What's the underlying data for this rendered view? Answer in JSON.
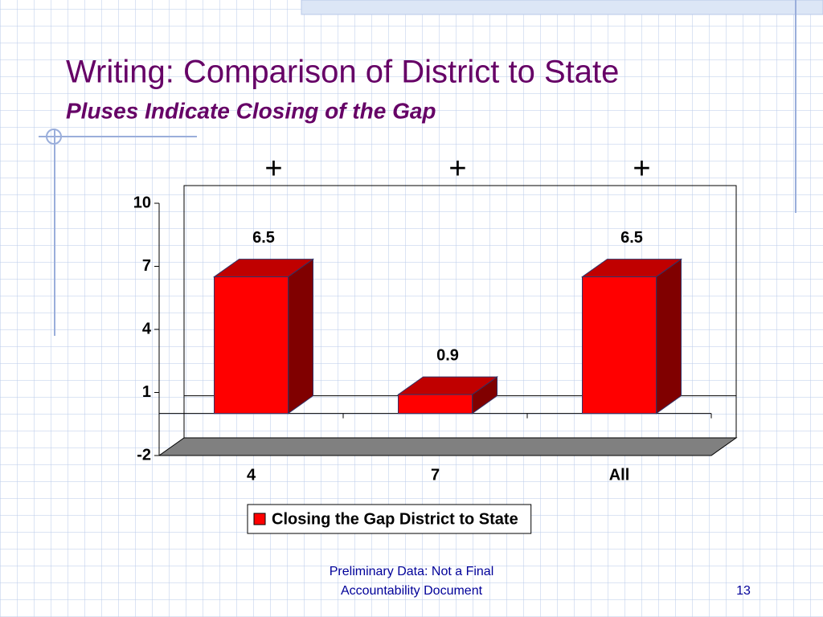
{
  "slide": {
    "title": "Writing: Comparison of District to State",
    "subtitle": "Pluses Indicate Closing of the Gap",
    "footer": [
      "Preliminary Data:  Not a Final",
      "Accountability Document"
    ],
    "page_number": "13"
  },
  "chart_data": {
    "type": "bar3d",
    "categories": [
      "4",
      "7",
      "All"
    ],
    "series": [
      {
        "name": "Closing the Gap District to State",
        "color": "#ff0000",
        "values": [
          6.5,
          0.9,
          6.5
        ]
      }
    ],
    "annotations": [
      "+",
      "+",
      "+"
    ],
    "ylim": [
      -2,
      10
    ],
    "yticks": [
      -2,
      1,
      4,
      7,
      10
    ],
    "legend": "bottom"
  }
}
